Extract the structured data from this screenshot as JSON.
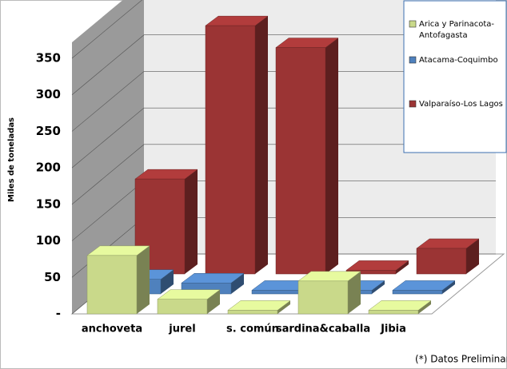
{
  "chart_data": {
    "type": "bar3d",
    "y_label": "Miles de toneladas",
    "note": "(*) Datos Preliminares",
    "categories": [
      "anchoveta",
      "jurel",
      "s. común",
      "sardina&caballa",
      "Jibia"
    ],
    "series": [
      {
        "name": "Arica y Parinacota-Antofagasta",
        "color": "#c9d98a",
        "values": [
          80,
          20,
          5,
          45,
          5
        ]
      },
      {
        "name": "Atacama-Coquimbo",
        "color": "#4f81bd",
        "values": [
          20,
          15,
          5,
          5,
          5
        ]
      },
      {
        "name": "Valparaíso-Los Lagos",
        "color": "#9b3434",
        "values": [
          130,
          340,
          310,
          5,
          35
        ]
      }
    ],
    "ylim": [
      0,
      350
    ],
    "yticks": [
      {
        "value": 0,
        "label": "-"
      },
      50,
      100,
      150,
      200,
      250,
      300,
      350
    ],
    "grid": true
  }
}
